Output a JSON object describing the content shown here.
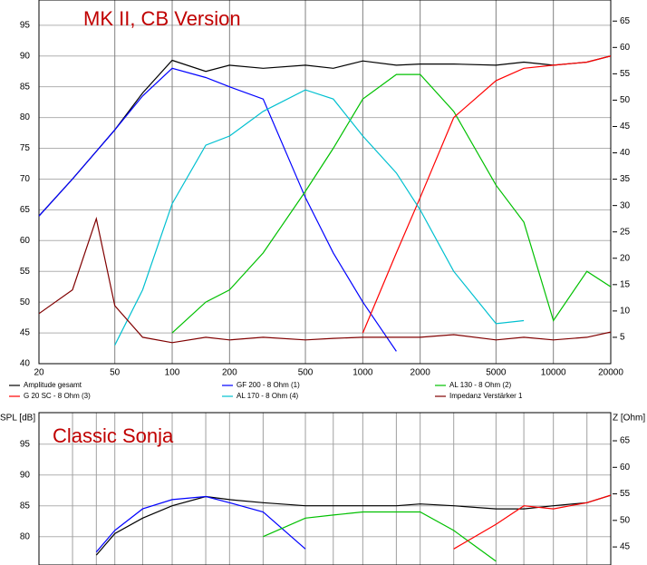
{
  "chart_data": [
    {
      "type": "line",
      "title": "MK II, CB Version",
      "log_x": true,
      "legend": "bottom",
      "x": [
        20,
        30,
        40,
        50,
        70,
        100,
        150,
        200,
        300,
        500,
        700,
        1000,
        1500,
        2000,
        3000,
        5000,
        7000,
        10000,
        15000,
        20000
      ],
      "xlim": [
        20,
        20000
      ],
      "xticks": [
        20,
        50,
        100,
        200,
        500,
        1000,
        2000,
        5000,
        10000,
        20000
      ],
      "ylim": [
        40,
        99.1
      ],
      "yticks": [
        40,
        45,
        50,
        55,
        60,
        65,
        70,
        75,
        80,
        85,
        90,
        95
      ],
      "y2lim": [
        0,
        69
      ],
      "y2ticks": [
        5,
        10,
        15,
        20,
        25,
        30,
        35,
        40,
        45,
        50,
        55,
        60,
        65
      ],
      "grid": true,
      "series": [
        {
          "name": "Amplitude gesamt",
          "color": "#000000",
          "values": [
            64,
            70,
            74.5,
            78,
            84,
            89.3,
            87.5,
            88.5,
            88,
            88.5,
            88,
            89.2,
            88.5,
            88.7,
            88.7,
            88.5,
            89,
            88.5,
            89,
            90
          ]
        },
        {
          "name": "GF 200 - 8 Ohm (1)",
          "color": "#0000ff",
          "values": [
            64,
            70,
            74.5,
            78,
            83.5,
            88,
            86.5,
            85,
            83,
            67,
            58,
            50,
            42,
            null,
            null,
            null,
            null,
            null,
            null,
            null
          ]
        },
        {
          "name": "AL 130 - 8 Ohm (2)",
          "color": "#00c000",
          "values": [
            null,
            null,
            null,
            null,
            null,
            45,
            50,
            52,
            58,
            68,
            75,
            83,
            87,
            87,
            81,
            69,
            63,
            47,
            55,
            52.5
          ]
        },
        {
          "name": "G 20 SC - 8 Ohm (3)",
          "color": "#ff0000",
          "values": [
            null,
            null,
            null,
            null,
            null,
            null,
            null,
            null,
            null,
            null,
            null,
            45,
            58,
            67,
            80,
            86,
            88,
            88.5,
            89,
            90
          ]
        },
        {
          "name": "AL 170 - 8 Ohm (4)",
          "color": "#00c0d0",
          "values": [
            null,
            null,
            null,
            43,
            52,
            66,
            75.5,
            77,
            81,
            84.5,
            83,
            77,
            71,
            65,
            55,
            46.5,
            47,
            null,
            null,
            null
          ]
        },
        {
          "name": "Impedanz Verstärker 1",
          "color": "#800000",
          "axis": "y2",
          "values": [
            9.5,
            14,
            27.5,
            11,
            5,
            4,
            5,
            4.5,
            5,
            4.5,
            4.8,
            5,
            5,
            5,
            5.5,
            4.5,
            5,
            4.5,
            5,
            6
          ]
        }
      ]
    },
    {
      "type": "line",
      "title": "Classic Sonja",
      "ylabel": "SPL [dB]",
      "y2label": "Z [Ohm]",
      "log_x": true,
      "x": [
        20,
        30,
        40,
        50,
        70,
        100,
        150,
        200,
        300,
        500,
        700,
        1000,
        1500,
        2000,
        3000,
        5000,
        7000,
        10000,
        15000,
        20000
      ],
      "xlim": [
        20,
        20000
      ],
      "ylim": [
        75.4,
        100.1
      ],
      "yticks": [
        80,
        85,
        90,
        95
      ],
      "y2lim": [
        41.6,
        70.3
      ],
      "y2ticks": [
        45,
        50,
        55,
        60,
        65
      ],
      "grid": true,
      "series": [
        {
          "color": "#000000",
          "values": [
            null,
            null,
            77,
            80.5,
            83,
            85,
            86.5,
            86,
            85.5,
            85,
            85,
            85,
            85,
            85.3,
            85,
            84.5,
            84.5,
            85,
            85.5,
            86.7
          ]
        },
        {
          "color": "#0000ff",
          "values": [
            null,
            null,
            77.5,
            81,
            84.5,
            86,
            86.5,
            85.5,
            84,
            78,
            null,
            null,
            null,
            null,
            null,
            null,
            null,
            null,
            null,
            null
          ]
        },
        {
          "color": "#00c000",
          "values": [
            null,
            null,
            null,
            null,
            null,
            null,
            null,
            null,
            80,
            83,
            83.5,
            84,
            84,
            84,
            81,
            76,
            null,
            null,
            null,
            null
          ]
        },
        {
          "color": "#ff0000",
          "values": [
            null,
            null,
            null,
            null,
            null,
            null,
            null,
            null,
            null,
            null,
            null,
            null,
            null,
            null,
            78,
            82,
            85,
            84.5,
            85.5,
            86.7
          ]
        }
      ]
    }
  ]
}
